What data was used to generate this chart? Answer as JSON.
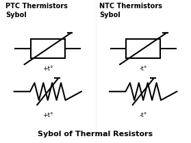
{
  "bg_color": "#ffffff",
  "text_color": "#000000",
  "line_color": "#000000",
  "line_width": 1.5,
  "title": "Sybol of Thermal Resistors",
  "ptc_title": "PTC Thermistors\nSybol",
  "ntc_title": "NTC Thermistors\nSybol",
  "ptc_label1": "+t°",
  "ntc_label1": "-t°",
  "ptc_label2": "+t°",
  "ntc_label2": "-t°",
  "title_fontsize": 8,
  "header_fontsize": 7,
  "label_fontsize": 6.5,
  "fig_width": 2.79,
  "fig_height": 2.09,
  "dpi": 100
}
